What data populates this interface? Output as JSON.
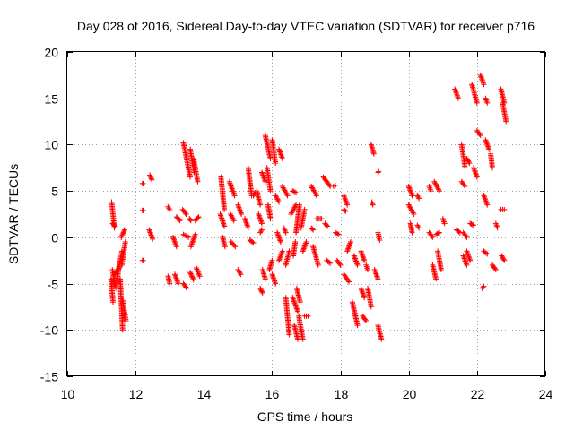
{
  "chart_data": {
    "type": "scatter",
    "title": "Day 028 of 2016, Sidereal Day-to-day VTEC variation (SDTVAR) for receiver p716",
    "xlabel": "GPS time / hours",
    "ylabel": "SDTVAR / TECUs",
    "xlim": [
      10,
      24
    ],
    "ylim": [
      -15,
      20
    ],
    "xticks": [
      10,
      12,
      14,
      16,
      18,
      20,
      22,
      24
    ],
    "yticks": [
      -15,
      -10,
      -5,
      0,
      5,
      10,
      15,
      20
    ],
    "grid": true,
    "marker": "+",
    "color": "#ff0000",
    "segments": [
      [
        11.3,
        3.8,
        11.38,
        1.0
      ],
      [
        11.33,
        1.5,
        11.4,
        1.2
      ],
      [
        11.28,
        -4.5,
        11.34,
        -7.0
      ],
      [
        11.32,
        -3.5,
        11.42,
        -5.5
      ],
      [
        11.38,
        -4.0,
        11.48,
        -3.5
      ],
      [
        11.45,
        -5.0,
        11.52,
        -3.0
      ],
      [
        11.5,
        -3.5,
        11.6,
        -1.5
      ],
      [
        11.55,
        -4.5,
        11.62,
        -10.0
      ],
      [
        11.6,
        -3.0,
        11.7,
        -0.5
      ],
      [
        11.58,
        0.0,
        11.68,
        0.8
      ],
      [
        11.62,
        -6.8,
        11.72,
        -9.0
      ],
      [
        12.2,
        5.8,
        12.22,
        5.8
      ],
      [
        12.2,
        2.9,
        12.22,
        2.9
      ],
      [
        12.2,
        -2.5,
        12.22,
        -2.5
      ],
      [
        12.42,
        6.7,
        12.48,
        6.2
      ],
      [
        12.4,
        0.8,
        12.5,
        -0.2
      ],
      [
        12.95,
        3.3,
        13.0,
        3.0
      ],
      [
        12.95,
        -4.2,
        13.0,
        -5.0
      ],
      [
        13.1,
        0.0,
        13.2,
        -1.0
      ],
      [
        13.2,
        2.2,
        13.3,
        1.8
      ],
      [
        13.15,
        -4.0,
        13.25,
        -5.0
      ],
      [
        13.4,
        10.2,
        13.6,
        6.5
      ],
      [
        13.38,
        3.0,
        13.48,
        2.5
      ],
      [
        13.4,
        0.3,
        13.55,
        0.0
      ],
      [
        13.4,
        -5.0,
        13.5,
        -5.5
      ],
      [
        13.6,
        9.5,
        13.72,
        7.0
      ],
      [
        13.58,
        2.0,
        13.62,
        1.8
      ],
      [
        13.62,
        -1.0,
        13.75,
        0.3
      ],
      [
        13.6,
        -3.8,
        13.7,
        -4.6
      ],
      [
        13.7,
        8.5,
        13.82,
        6.0
      ],
      [
        13.75,
        1.8,
        13.85,
        2.2
      ],
      [
        13.78,
        -3.3,
        13.88,
        -4.2
      ],
      [
        14.5,
        6.5,
        14.6,
        3.0
      ],
      [
        14.48,
        2.5,
        14.6,
        1.2
      ],
      [
        14.55,
        0.0,
        14.62,
        -1.0
      ],
      [
        14.75,
        6.0,
        14.9,
        4.5
      ],
      [
        14.78,
        2.5,
        14.88,
        1.8
      ],
      [
        14.8,
        -0.5,
        14.92,
        -1.0
      ],
      [
        15.0,
        3.5,
        15.1,
        2.5
      ],
      [
        15.0,
        -3.5,
        15.08,
        -4.0
      ],
      [
        15.2,
        2.0,
        15.3,
        1.0
      ],
      [
        15.3,
        7.5,
        15.4,
        4.5
      ],
      [
        15.35,
        -0.3,
        15.45,
        -0.6
      ],
      [
        15.45,
        4.5,
        15.5,
        4.8
      ],
      [
        15.55,
        5.0,
        15.65,
        3.5
      ],
      [
        15.6,
        2.5,
        15.7,
        1.5
      ],
      [
        15.65,
        0.5,
        15.7,
        0.8
      ],
      [
        15.65,
        -5.5,
        15.72,
        -6.0
      ],
      [
        15.7,
        7.0,
        15.8,
        6.0
      ],
      [
        15.72,
        -3.5,
        15.8,
        -4.5
      ],
      [
        15.8,
        11.0,
        15.95,
        8.5
      ],
      [
        15.85,
        7.5,
        15.95,
        5.0
      ],
      [
        15.88,
        3.5,
        15.95,
        2.0
      ],
      [
        15.92,
        -3.5,
        16.0,
        -2.5
      ],
      [
        16.0,
        10.5,
        16.1,
        8.0
      ],
      [
        16.0,
        -4.0,
        16.1,
        -5.0
      ],
      [
        16.1,
        4.5,
        16.2,
        3.8
      ],
      [
        16.15,
        0.5,
        16.25,
        -0.5
      ],
      [
        16.2,
        9.5,
        16.3,
        8.5
      ],
      [
        16.2,
        -2.5,
        16.3,
        -1.5
      ],
      [
        16.3,
        5.5,
        16.45,
        4.5
      ],
      [
        16.35,
        1.0,
        16.4,
        0.5
      ],
      [
        16.4,
        -3.0,
        16.5,
        -1.5
      ],
      [
        16.4,
        -6.5,
        16.5,
        -10.5
      ],
      [
        16.55,
        2.5,
        16.7,
        3.5
      ],
      [
        16.6,
        -6.5,
        16.75,
        -8.0
      ],
      [
        16.62,
        -2.0,
        16.68,
        -0.5
      ],
      [
        16.6,
        5.0,
        16.7,
        4.8
      ],
      [
        16.65,
        -9.5,
        16.75,
        -11.0
      ],
      [
        16.7,
        0.5,
        16.8,
        3.5
      ],
      [
        16.72,
        -5.5,
        16.82,
        -7.0
      ],
      [
        16.78,
        -8.5,
        16.9,
        -11.0
      ],
      [
        16.85,
        1.0,
        16.95,
        3.0
      ],
      [
        16.9,
        -1.5,
        17.0,
        -0.5
      ],
      [
        16.95,
        -8.5,
        17.05,
        -8.5
      ],
      [
        17.15,
        5.5,
        17.3,
        4.5
      ],
      [
        17.15,
        1.0,
        17.2,
        0.8
      ],
      [
        17.2,
        -1.0,
        17.35,
        -3.0
      ],
      [
        17.3,
        2.0,
        17.45,
        2.0
      ],
      [
        17.5,
        6.5,
        17.7,
        5.5
      ],
      [
        17.55,
        1.5,
        17.62,
        1.2
      ],
      [
        17.6,
        -2.5,
        17.7,
        -2.8
      ],
      [
        17.8,
        5.5,
        17.85,
        5.6
      ],
      [
        17.85,
        0.5,
        17.95,
        0.3
      ],
      [
        17.9,
        -2.5,
        18.0,
        -3.0
      ],
      [
        18.1,
        4.5,
        18.2,
        3.5
      ],
      [
        18.1,
        3.0,
        18.15,
        2.8
      ],
      [
        18.1,
        -4.0,
        18.25,
        -4.8
      ],
      [
        18.2,
        -1.5,
        18.3,
        -0.5
      ],
      [
        18.35,
        -7.0,
        18.5,
        -9.5
      ],
      [
        18.4,
        -2.0,
        18.5,
        -3.0
      ],
      [
        18.6,
        -1.5,
        18.7,
        -2.5
      ],
      [
        18.6,
        -5.5,
        18.7,
        -6.5
      ],
      [
        18.65,
        -8.5,
        18.75,
        -9.0
      ],
      [
        18.75,
        -3.0,
        18.8,
        -3.5
      ],
      [
        18.8,
        -5.5,
        18.9,
        -7.5
      ],
      [
        18.9,
        10.0,
        18.98,
        9.0
      ],
      [
        18.92,
        3.8,
        18.95,
        3.5
      ],
      [
        19.0,
        -3.5,
        19.1,
        -4.5
      ],
      [
        19.1,
        7.0,
        19.12,
        7.1
      ],
      [
        19.1,
        0.5,
        19.15,
        -0.3
      ],
      [
        19.1,
        -9.5,
        19.2,
        -11.0
      ],
      [
        20.0,
        5.5,
        20.1,
        4.5
      ],
      [
        20.0,
        3.5,
        20.15,
        2.5
      ],
      [
        20.05,
        1.5,
        20.1,
        0.5
      ],
      [
        20.25,
        4.5,
        20.3,
        4.2
      ],
      [
        20.25,
        1.3,
        20.3,
        1.0
      ],
      [
        20.6,
        5.5,
        20.65,
        5.0
      ],
      [
        20.6,
        0.5,
        20.7,
        0.0
      ],
      [
        20.7,
        -3.0,
        20.8,
        -4.5
      ],
      [
        20.75,
        6.0,
        20.9,
        5.0
      ],
      [
        20.8,
        0.3,
        20.9,
        0.5
      ],
      [
        20.85,
        -1.5,
        20.95,
        -3.5
      ],
      [
        21.0,
        2.0,
        21.05,
        1.5
      ],
      [
        21.35,
        16.0,
        21.45,
        15.0
      ],
      [
        21.4,
        0.8,
        21.5,
        0.5
      ],
      [
        21.55,
        10.0,
        21.65,
        7.5
      ],
      [
        21.55,
        6.0,
        21.65,
        5.5
      ],
      [
        21.6,
        -2.0,
        21.7,
        -3.0
      ],
      [
        21.6,
        0.5,
        21.7,
        0.0
      ],
      [
        21.7,
        8.5,
        21.78,
        8.0
      ],
      [
        21.7,
        -1.5,
        21.8,
        -2.5
      ],
      [
        21.8,
        1.5,
        21.9,
        1.3
      ],
      [
        21.85,
        16.5,
        22.0,
        14.5
      ],
      [
        21.9,
        7.5,
        22.0,
        6.5
      ],
      [
        22.0,
        11.5,
        22.1,
        11.0
      ],
      [
        22.1,
        17.5,
        22.2,
        16.5
      ],
      [
        22.15,
        -5.5,
        22.2,
        -5.3
      ],
      [
        22.2,
        4.5,
        22.3,
        3.5
      ],
      [
        22.2,
        -1.5,
        22.3,
        -1.8
      ],
      [
        22.25,
        15.0,
        22.3,
        14.5
      ],
      [
        22.25,
        10.5,
        22.35,
        9.5
      ],
      [
        22.4,
        9.0,
        22.45,
        7.5
      ],
      [
        22.45,
        -3.0,
        22.55,
        -3.5
      ],
      [
        22.55,
        1.5,
        22.6,
        1.0
      ],
      [
        22.7,
        16.0,
        22.8,
        14.5
      ],
      [
        22.7,
        3.0,
        22.8,
        3.0
      ],
      [
        22.72,
        -2.0,
        22.8,
        -2.5
      ],
      [
        22.75,
        14.5,
        22.85,
        12.5
      ]
    ]
  }
}
